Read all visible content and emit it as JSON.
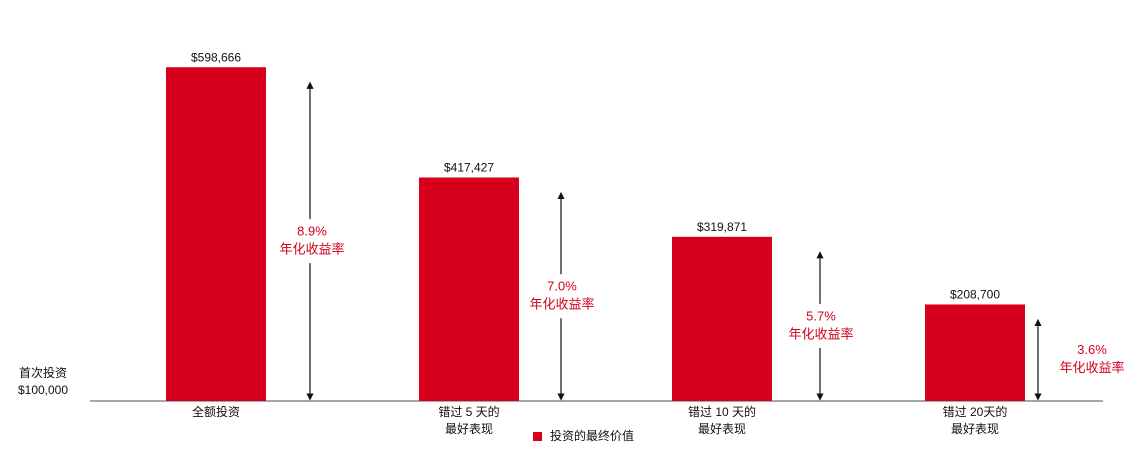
{
  "chart_data": {
    "type": "bar",
    "categories": [
      [
        "全额投资"
      ],
      [
        "错过 5 天的",
        "最好表现"
      ],
      [
        "错过 10 天的",
        "最好表现"
      ],
      [
        "错过 20天的",
        "最好表现"
      ]
    ],
    "values": [
      598666,
      417427,
      319871,
      208700
    ],
    "value_labels": [
      "$598,666",
      "$417,427",
      "$319,871",
      "$208,700"
    ],
    "color": "#d7001c",
    "ylim": [
      50000,
      650000
    ],
    "baseline_label": [
      "首次投资",
      "$100,000"
    ],
    "annotations": [
      {
        "text": "8.9%",
        "label": "年化收益率"
      },
      {
        "text": "7.0%",
        "label": "年化收益率"
      },
      {
        "text": "5.7%",
        "label": "年化收益率"
      },
      {
        "text": "3.6%",
        "label": "年化收益率"
      }
    ],
    "legend": [
      "投资的最终价值"
    ]
  }
}
